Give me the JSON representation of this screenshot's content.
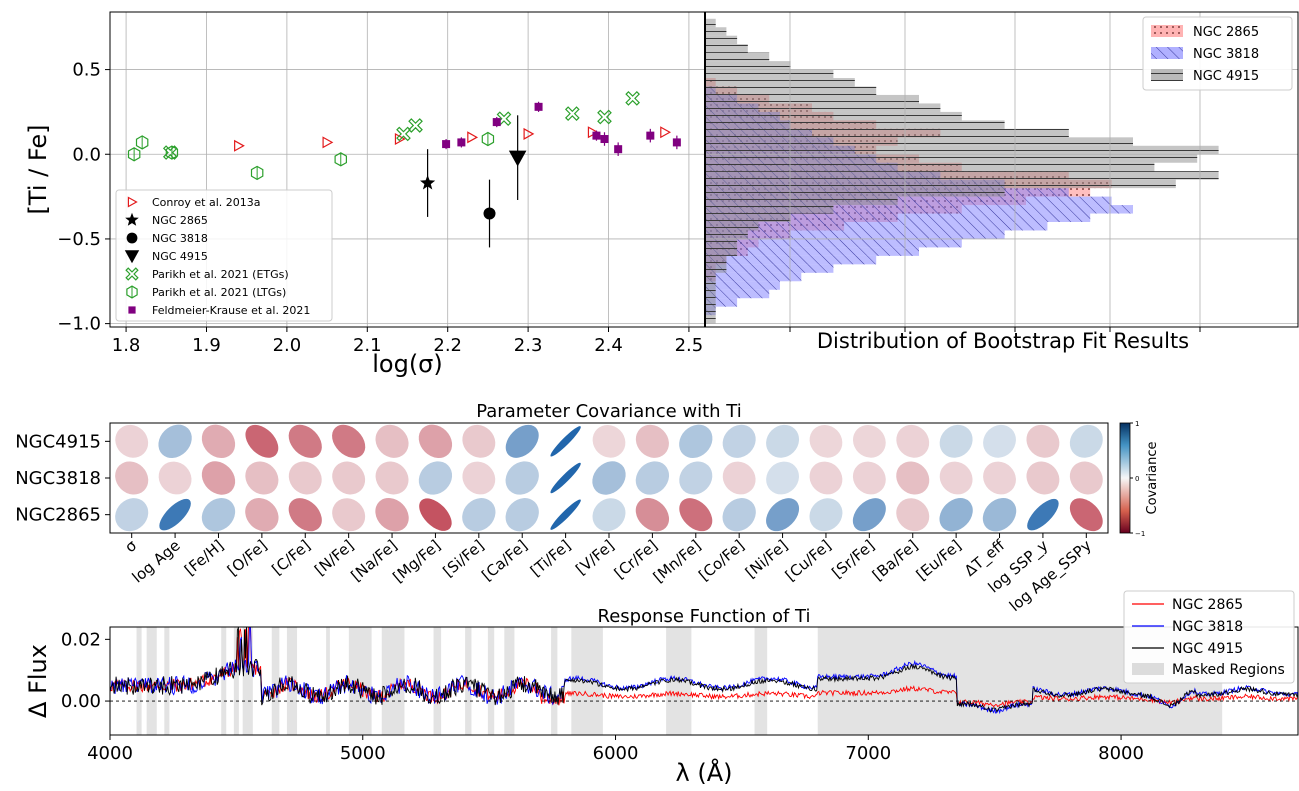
{
  "chart_data": [
    {
      "type": "scatter",
      "xlabel": "log(σ)",
      "ylabel": "[Ti / Fe]",
      "xlim": [
        1.78,
        2.52
      ],
      "ylim": [
        -1.02,
        0.84
      ],
      "xticks": [
        "1.8",
        "1.9",
        "2.0",
        "2.1",
        "2.2",
        "2.3",
        "2.4",
        "2.5"
      ],
      "yticks": [
        "0.5",
        "0.0",
        "−0.5",
        "−1.0"
      ],
      "grid": true,
      "legend_position": "lower-left",
      "series": [
        {
          "name": "Conroy et al. 2013a",
          "marker": "triangle-right-open",
          "color": "#e31a1c",
          "points": [
            [
              1.94,
              0.05
            ],
            [
              2.05,
              0.07
            ],
            [
              2.14,
              0.09
            ],
            [
              2.23,
              0.1
            ],
            [
              2.3,
              0.12
            ],
            [
              2.38,
              0.13
            ],
            [
              2.47,
              0.13
            ]
          ]
        },
        {
          "name": "NGC 2865",
          "marker": "star",
          "color": "#000000",
          "points": [
            [
              2.175,
              -0.17,
              0.2
            ]
          ]
        },
        {
          "name": "NGC 3818",
          "marker": "circle",
          "color": "#000000",
          "points": [
            [
              2.252,
              -0.35,
              0.2
            ]
          ]
        },
        {
          "name": "NGC 4915",
          "marker": "triangle-down",
          "color": "#000000",
          "points": [
            [
              2.287,
              -0.02,
              0.25
            ]
          ]
        },
        {
          "name": "Parikh et al. 2021 (ETGs)",
          "marker": "x-open",
          "color": "#2ca02c",
          "points": [
            [
              1.855,
              0.01
            ],
            [
              2.145,
              0.12
            ],
            [
              2.16,
              0.17
            ],
            [
              2.27,
              0.21
            ],
            [
              2.355,
              0.24
            ],
            [
              2.395,
              0.22
            ],
            [
              2.43,
              0.33
            ]
          ]
        },
        {
          "name": "Parikh et al. 2021 (LTGs)",
          "marker": "hexagon-open",
          "color": "#2ca02c",
          "points": [
            [
              1.81,
              0.0
            ],
            [
              1.82,
              0.07
            ],
            [
              1.857,
              0.01
            ],
            [
              1.963,
              -0.11
            ],
            [
              2.067,
              -0.03
            ],
            [
              2.25,
              0.09
            ]
          ]
        },
        {
          "name": "Feldmeier-Krause et al. 2021",
          "marker": "square",
          "color": "#800080",
          "points": [
            [
              2.198,
              0.06,
              0.03
            ],
            [
              2.217,
              0.07,
              0.03
            ],
            [
              2.261,
              0.19,
              0.03
            ],
            [
              2.313,
              0.28,
              0.03
            ],
            [
              2.385,
              0.11,
              0.03
            ],
            [
              2.395,
              0.09,
              0.04
            ],
            [
              2.412,
              0.03,
              0.04
            ],
            [
              2.452,
              0.11,
              0.04
            ],
            [
              2.485,
              0.07,
              0.04
            ]
          ]
        }
      ]
    },
    {
      "type": "histogram",
      "orientation": "horizontal",
      "xlabel": "Distribution of Bootstrap Fit Results",
      "legend_position": "top-right",
      "ylim": [
        -1.02,
        0.84
      ],
      "bin_edges": [
        -1.0,
        -0.95,
        -0.9,
        -0.85,
        -0.8,
        -0.75,
        -0.7,
        -0.65,
        -0.6,
        -0.55,
        -0.5,
        -0.45,
        -0.4,
        -0.35,
        -0.3,
        -0.25,
        -0.2,
        -0.15,
        -0.1,
        -0.05,
        0.0,
        0.05,
        0.1,
        0.15,
        0.2,
        0.25,
        0.3,
        0.35,
        0.4,
        0.45,
        0.5,
        0.55,
        0.6,
        0.65,
        0.7,
        0.75,
        0.8
      ],
      "series": [
        {
          "name": "NGC 2865",
          "color": "#ff8080",
          "hatch": "dots",
          "counts": [
            0,
            0,
            0,
            0,
            0,
            1,
            1,
            2,
            4,
            5,
            8,
            13,
            18,
            24,
            30,
            36,
            38,
            34,
            24,
            20,
            16,
            18,
            22,
            16,
            12,
            10,
            6,
            3,
            1,
            0,
            0,
            0,
            0,
            0,
            0,
            0
          ]
        },
        {
          "name": "NGC 3818",
          "color": "#7b7bff",
          "hatch": "diagonal",
          "counts": [
            0,
            1,
            3,
            6,
            7,
            9,
            12,
            16,
            20,
            24,
            28,
            32,
            36,
            40,
            38,
            34,
            28,
            22,
            18,
            16,
            14,
            12,
            10,
            8,
            7,
            5,
            3,
            1,
            0,
            0,
            0,
            0,
            0,
            0,
            0,
            0
          ]
        },
        {
          "name": "NGC 4915",
          "color": "#8c8c8c",
          "hatch": "horizontal",
          "counts": [
            1,
            1,
            1,
            1,
            1,
            1,
            2,
            2,
            3,
            3,
            4,
            5,
            8,
            12,
            18,
            28,
            44,
            48,
            42,
            46,
            48,
            40,
            34,
            28,
            24,
            22,
            20,
            16,
            14,
            12,
            8,
            6,
            4,
            3,
            2,
            1
          ]
        }
      ]
    },
    {
      "type": "heatmap",
      "title": "Parameter Covariance with Ti",
      "colorbar_label": "Covariance",
      "colorbar_ticks": [
        "1",
        "0",
        "−1"
      ],
      "rows": [
        "NGC4915",
        "NGC3818",
        "NGC2865"
      ],
      "columns": [
        "σ",
        "log Age",
        "[Fe/H]",
        "[O/Fe]",
        "[C/Fe]",
        "[N/Fe]",
        "[Na/Fe]",
        "[Mg/Fe]",
        "[Si/Fe]",
        "[Ca/Fe]",
        "[Ti/Fe]",
        "[V/Fe]",
        "[Cr/Fe]",
        "[Mn/Fe]",
        "[Co/Fe]",
        "[Ni/Fe]",
        "[Cu/Fe]",
        "[Sr/Fe]",
        "[Ba/Fe]",
        "[Eu/Fe]",
        "ΔT_eff",
        "log SSP_y",
        "log Age_SSPy"
      ],
      "values": [
        [
          -0.05,
          0.3,
          -0.25,
          -0.6,
          -0.5,
          -0.5,
          -0.15,
          -0.3,
          -0.1,
          0.55,
          1.0,
          -0.03,
          -0.15,
          0.25,
          0.15,
          0.1,
          -0.03,
          -0.03,
          -0.05,
          0.1,
          0.05,
          -0.1,
          0.1
        ],
        [
          -0.15,
          -0.05,
          -0.3,
          -0.15,
          -0.1,
          -0.1,
          -0.1,
          0.2,
          -0.05,
          0.2,
          1.0,
          0.3,
          0.2,
          0.15,
          -0.05,
          0.05,
          -0.05,
          -0.05,
          -0.15,
          -0.05,
          -0.05,
          -0.1,
          -0.1
        ],
        [
          0.15,
          0.85,
          0.25,
          -0.25,
          -0.5,
          -0.1,
          -0.3,
          -0.7,
          0.2,
          0.2,
          1.0,
          0.1,
          -0.4,
          -0.55,
          0.2,
          0.55,
          0.1,
          0.55,
          -0.1,
          0.4,
          0.35,
          0.85,
          -0.6
        ]
      ]
    },
    {
      "type": "line",
      "title": "Response Function of Ti",
      "xlabel": "λ (Å)",
      "ylabel": "Δ Flux",
      "xlim": [
        4000,
        8700
      ],
      "ylim": [
        -0.011,
        0.024
      ],
      "xticks": [
        "4000",
        "5000",
        "6000",
        "7000",
        "8000"
      ],
      "yticks": [
        "0.02",
        "0.00"
      ],
      "legend_position": "top-right",
      "masked_label": "Masked Regions",
      "masked_regions": [
        [
          4105,
          4125
        ],
        [
          4145,
          4185
        ],
        [
          4215,
          4235
        ],
        [
          4440,
          4460
        ],
        [
          4490,
          4510
        ],
        [
          4525,
          4565
        ],
        [
          4640,
          4670
        ],
        [
          4700,
          4740
        ],
        [
          4855,
          4870
        ],
        [
          4945,
          5035
        ],
        [
          5075,
          5165
        ],
        [
          5280,
          5310
        ],
        [
          5405,
          5430
        ],
        [
          5495,
          5520
        ],
        [
          5560,
          5600
        ],
        [
          5745,
          5770
        ],
        [
          5825,
          5950
        ],
        [
          6200,
          6300
        ],
        [
          6550,
          6600
        ],
        [
          6800,
          8400
        ]
      ],
      "series": [
        {
          "name": "NGC 2865",
          "color": "#ff0000"
        },
        {
          "name": "NGC 3818",
          "color": "#0000ff"
        },
        {
          "name": "NGC 4915",
          "color": "#000000"
        }
      ]
    }
  ]
}
